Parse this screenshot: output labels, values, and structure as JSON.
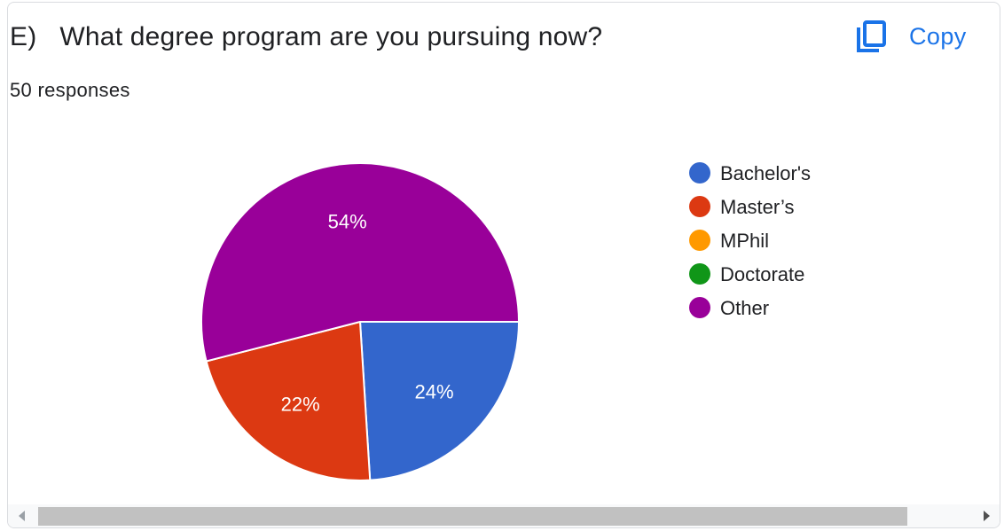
{
  "question": {
    "number": "E)",
    "text": "What degree program are you pursuing now?",
    "responses": "50 responses"
  },
  "copy_button": {
    "label": "Copy",
    "icon": "copy-icon"
  },
  "colors": {
    "accent": "#1a73e8",
    "label_text": "#ffffff",
    "legend_text": "#202124"
  },
  "chart_data": {
    "type": "pie",
    "title": "",
    "legend_position": "right",
    "slices": [
      {
        "label": "Bachelor's",
        "value": 24,
        "value_label": "24%",
        "color": "#3366cc"
      },
      {
        "label": "Master’s",
        "value": 22,
        "value_label": "22%",
        "color": "#dc3912"
      },
      {
        "label": "MPhil",
        "value": 0,
        "value_label": "",
        "color": "#ff9900"
      },
      {
        "label": "Doctorate",
        "value": 0,
        "value_label": "",
        "color": "#109618"
      },
      {
        "label": "Other",
        "value": 54,
        "value_label": "54%",
        "color": "#990099"
      }
    ]
  }
}
